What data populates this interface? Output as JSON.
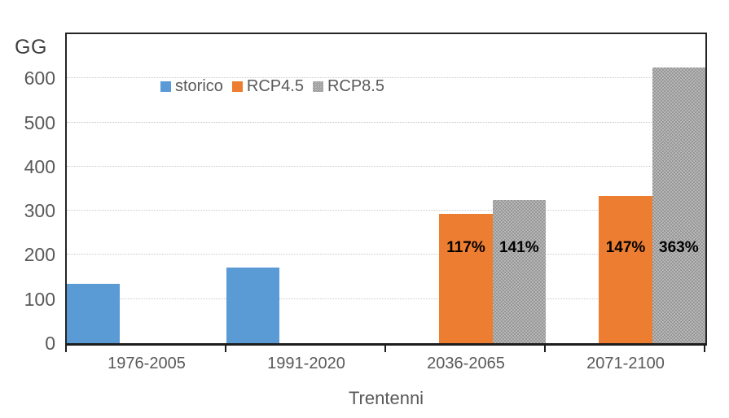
{
  "chart_data": {
    "type": "bar",
    "title": "",
    "y_axis_label": "GG",
    "x_axis_label": "Trentenni",
    "categories": [
      "1976-2005",
      "1991-2020",
      "2036-2065",
      "2071-2100"
    ],
    "series": [
      {
        "name": "storico",
        "color": "#5B9BD5",
        "pattern": false,
        "values": [
          135,
          172,
          null,
          null
        ],
        "bar_labels": [
          null,
          null,
          null,
          null
        ]
      },
      {
        "name": "RCP4.5",
        "color": "#ED7D31",
        "pattern": false,
        "values": [
          null,
          null,
          293,
          333
        ],
        "bar_labels": [
          null,
          null,
          "117%",
          "147%"
        ]
      },
      {
        "name": "RCP8.5",
        "color": "#A6A6A6",
        "pattern": true,
        "values": [
          null,
          null,
          325,
          625
        ],
        "bar_labels": [
          null,
          null,
          "141%",
          "363%"
        ]
      }
    ],
    "y_ticks": [
      0,
      100,
      200,
      300,
      400,
      500,
      600
    ],
    "ylim": [
      0,
      700
    ],
    "grid": "horizontal-dotted",
    "legend_position": "top-left-inside",
    "axis_color": "#242424",
    "tick_label_color": "#595959"
  }
}
